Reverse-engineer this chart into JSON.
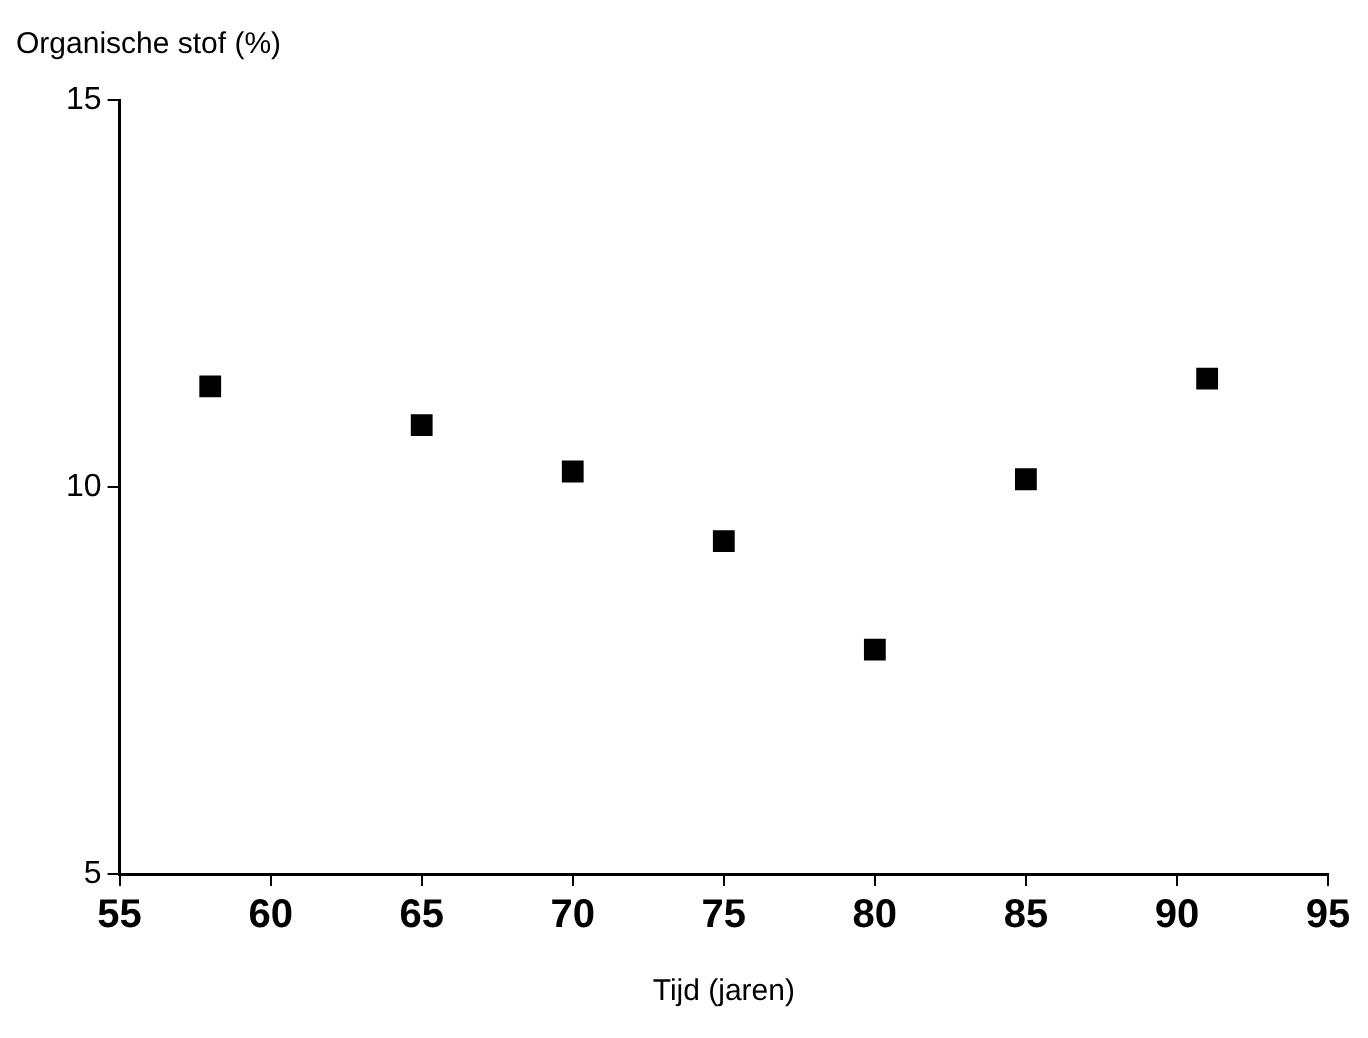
{
  "chart_data": {
    "type": "scatter",
    "ylabel": "Organische stof (%)",
    "xlabel": "Tijd (jaren)",
    "x": [
      58,
      65,
      70,
      75,
      80,
      85,
      91
    ],
    "series": [
      {
        "color": "#000000",
        "values": [
          11.3,
          10.8,
          10.2,
          9.3,
          7.9,
          10.1,
          11.4
        ]
      }
    ],
    "xlim": [
      55,
      95
    ],
    "xticks": [
      55,
      60,
      65,
      70,
      75,
      80,
      85,
      90,
      95
    ],
    "ylim": [
      5,
      15
    ],
    "yticks": [
      5,
      10,
      15
    ],
    "grid": false,
    "legend": false,
    "marker": "square"
  }
}
